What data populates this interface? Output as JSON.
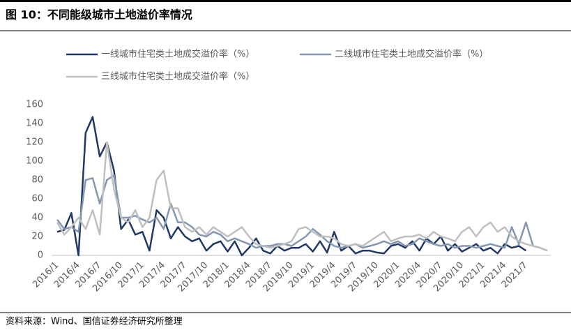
{
  "chart_data": {
    "type": "line",
    "title": "图 10：不同能级城市土地溢价率情况",
    "source": "资料来源：Wind、国信证券经济研究所整理",
    "categories": [
      "2016/1",
      null,
      null,
      "2016/4",
      null,
      null,
      "2016/7",
      null,
      null,
      "2016/10",
      null,
      null,
      "2017/1",
      null,
      null,
      "2017/4",
      null,
      null,
      "2017/7",
      null,
      null,
      "2017/10",
      null,
      null,
      "2018/1",
      null,
      null,
      "2018/4",
      null,
      null,
      "2018/7",
      null,
      null,
      "2018/10",
      null,
      null,
      "2019/1",
      null,
      null,
      "2019/4",
      null,
      null,
      "2019/7",
      null,
      null,
      "2019/10",
      null,
      null,
      "2020/1",
      null,
      null,
      "2020/4",
      null,
      null,
      "2020/7",
      null,
      null,
      "2020/10",
      null,
      null,
      "2021/1",
      null,
      null,
      "2021/4",
      null,
      null,
      "2021/7",
      null,
      null,
      null
    ],
    "series": [
      {
        "name": "一线城市住宅类土地成交溢价率（%）",
        "color": "#1f3864",
        "values": [
          25,
          27,
          45,
          0,
          130,
          147,
          105,
          120,
          90,
          28,
          38,
          22,
          25,
          5,
          48,
          40,
          18,
          30,
          20,
          15,
          18,
          5,
          12,
          15,
          4,
          15,
          0,
          8,
          18,
          5,
          2,
          10,
          5,
          8,
          8,
          12,
          4,
          15,
          3,
          25,
          5,
          10,
          2,
          5,
          5,
          3,
          2,
          10,
          12,
          8,
          15,
          5,
          18,
          12,
          20,
          5,
          12,
          4,
          8,
          12,
          5,
          8,
          2,
          12,
          8,
          10,
          5,
          null,
          null,
          null
        ]
      },
      {
        "name": "二线城市住宅类土地成交溢价率（%）",
        "color": "#8497b0",
        "values": [
          38,
          28,
          30,
          25,
          80,
          82,
          55,
          80,
          85,
          40,
          40,
          42,
          38,
          35,
          40,
          28,
          55,
          35,
          35,
          30,
          22,
          20,
          25,
          22,
          15,
          18,
          15,
          12,
          8,
          10,
          10,
          12,
          12,
          10,
          15,
          20,
          28,
          22,
          15,
          10,
          8,
          10,
          12,
          8,
          10,
          12,
          15,
          12,
          15,
          10,
          12,
          18,
          15,
          12,
          10,
          12,
          8,
          10,
          10,
          8,
          10,
          12,
          10,
          8,
          30,
          12,
          35,
          10,
          8,
          5
        ]
      },
      {
        "name": "三线城市住宅类土地成交溢价率（%）",
        "color": "#bfbfbf",
        "values": [
          35,
          22,
          30,
          40,
          28,
          48,
          22,
          120,
          70,
          40,
          35,
          48,
          30,
          40,
          80,
          90,
          50,
          50,
          30,
          25,
          30,
          22,
          30,
          25,
          20,
          25,
          30,
          20,
          12,
          10,
          8,
          10,
          12,
          15,
          28,
          30,
          25,
          20,
          20,
          18,
          12,
          10,
          12,
          10,
          15,
          20,
          25,
          15,
          18,
          20,
          20,
          22,
          18,
          25,
          20,
          18,
          15,
          25,
          30,
          20,
          30,
          35,
          25,
          30,
          20,
          15,
          12,
          10,
          8,
          5
        ]
      }
    ],
    "ylim": [
      0,
      160
    ],
    "yticks": [
      0,
      20,
      40,
      60,
      80,
      100,
      120,
      140,
      160
    ],
    "grid": false
  }
}
